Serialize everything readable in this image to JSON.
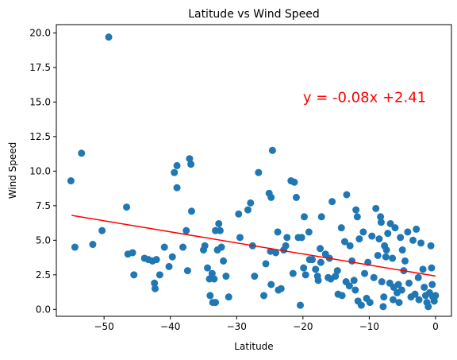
{
  "chart_data": {
    "type": "scatter",
    "title": "Latitude vs Wind Speed",
    "xlabel": "Latitude",
    "ylabel": "Wind Speed",
    "xlim": [
      -57.2,
      2.4
    ],
    "ylim": [
      -0.5,
      20.6
    ],
    "xticks": [
      -50,
      -40,
      -30,
      -20,
      -10,
      0
    ],
    "yticks": [
      0.0,
      2.5,
      5.0,
      7.5,
      10.0,
      12.5,
      15.0,
      17.5,
      20.0
    ],
    "xtick_labels": [
      "−50",
      "−40",
      "−30",
      "−20",
      "−10",
      "0"
    ],
    "ytick_labels": [
      "0.0",
      "2.5",
      "5.0",
      "7.5",
      "10.0",
      "12.5",
      "15.0",
      "17.5",
      "20.0"
    ],
    "grid": false,
    "point_color": "#1f77b4",
    "line_color": "#ff0000",
    "regression": {
      "slope": -0.08,
      "intercept": 2.41,
      "x_range": [
        -54.9,
        0
      ]
    },
    "annotation": {
      "text": "y = -0.08x +2.41",
      "x": -20,
      "y": 15.0,
      "color": "#ff0000"
    },
    "points": [
      [
        -49.3,
        19.7
      ],
      [
        -53.4,
        11.3
      ],
      [
        -55.0,
        9.3
      ],
      [
        -54.4,
        4.5
      ],
      [
        -51.7,
        4.7
      ],
      [
        -50.3,
        5.7
      ],
      [
        -46.6,
        7.4
      ],
      [
        -46.4,
        4.0
      ],
      [
        -45.7,
        4.1
      ],
      [
        -45.5,
        2.5
      ],
      [
        -43.9,
        3.7
      ],
      [
        -43.3,
        3.6
      ],
      [
        -42.7,
        3.5
      ],
      [
        -42.4,
        1.9
      ],
      [
        -42.3,
        1.5
      ],
      [
        -42.1,
        3.6
      ],
      [
        -41.6,
        2.5
      ],
      [
        -40.9,
        4.5
      ],
      [
        -40.2,
        3.1
      ],
      [
        -39.4,
        9.9
      ],
      [
        -39.0,
        10.4
      ],
      [
        -39.0,
        8.8
      ],
      [
        -39.7,
        3.8
      ],
      [
        -38.1,
        4.5
      ],
      [
        -37.6,
        5.7
      ],
      [
        -37.4,
        2.8
      ],
      [
        -37.1,
        10.9
      ],
      [
        -36.9,
        10.5
      ],
      [
        -36.8,
        7.1
      ],
      [
        -35.0,
        4.3
      ],
      [
        -34.8,
        4.6
      ],
      [
        -34.4,
        3.0
      ],
      [
        -34.1,
        2.2
      ],
      [
        -34.0,
        1.0
      ],
      [
        -33.7,
        2.6
      ],
      [
        -33.4,
        2.2
      ],
      [
        -33.6,
        0.5
      ],
      [
        -33.2,
        0.5
      ],
      [
        -33.2,
        5.7
      ],
      [
        -32.9,
        4.3
      ],
      [
        -32.7,
        6.2
      ],
      [
        -32.5,
        5.7
      ],
      [
        -32.3,
        4.5
      ],
      [
        -32.0,
        3.5
      ],
      [
        -31.6,
        2.4
      ],
      [
        -31.2,
        0.9
      ],
      [
        -29.7,
        6.9
      ],
      [
        -29.5,
        5.2
      ],
      [
        -28.3,
        7.2
      ],
      [
        -27.9,
        7.7
      ],
      [
        -27.6,
        4.6
      ],
      [
        -27.3,
        2.4
      ],
      [
        -26.7,
        9.9
      ],
      [
        -25.9,
        1.0
      ],
      [
        -25.6,
        3.3
      ],
      [
        -25.1,
        8.4
      ],
      [
        -24.9,
        4.2
      ],
      [
        -24.8,
        8.1
      ],
      [
        -24.6,
        11.5
      ],
      [
        -24.8,
        1.8
      ],
      [
        -24.1,
        4.1
      ],
      [
        -23.8,
        5.6
      ],
      [
        -23.7,
        1.4
      ],
      [
        -23.3,
        1.5
      ],
      [
        -22.9,
        4.3
      ],
      [
        -22.6,
        4.6
      ],
      [
        -22.4,
        5.2
      ],
      [
        -21.8,
        9.3
      ],
      [
        -21.3,
        9.2
      ],
      [
        -21.5,
        2.6
      ],
      [
        -21.0,
        8.1
      ],
      [
        -20.7,
        5.2
      ],
      [
        -20.4,
        0.3
      ],
      [
        -20.2,
        5.2
      ],
      [
        -19.8,
        6.7
      ],
      [
        -19.9,
        3.0
      ],
      [
        -19.6,
        2.5
      ],
      [
        -19.1,
        5.6
      ],
      [
        -19.0,
        3.6
      ],
      [
        -18.6,
        3.6
      ],
      [
        -18.1,
        2.9
      ],
      [
        -17.8,
        2.4
      ],
      [
        -17.7,
        2.1
      ],
      [
        -17.4,
        4.4
      ],
      [
        -17.3,
        3.4
      ],
      [
        -17.2,
        6.7
      ],
      [
        -16.6,
        4.0
      ],
      [
        -16.2,
        2.3
      ],
      [
        -16.0,
        3.7
      ],
      [
        -15.8,
        2.2
      ],
      [
        -15.6,
        7.8
      ],
      [
        -15.1,
        2.4
      ],
      [
        -14.8,
        2.8
      ],
      [
        -14.7,
        1.1
      ],
      [
        -14.2,
        5.9
      ],
      [
        -14.1,
        1.0
      ],
      [
        -13.7,
        4.9
      ],
      [
        -13.5,
        2.0
      ],
      [
        -13.4,
        8.3
      ],
      [
        -13.0,
        1.7
      ],
      [
        -12.9,
        4.6
      ],
      [
        -12.6,
        3.5
      ],
      [
        -12.3,
        2.1
      ],
      [
        -12.1,
        1.4
      ],
      [
        -12.0,
        7.2
      ],
      [
        -11.8,
        6.7
      ],
      [
        -11.7,
        0.6
      ],
      [
        -11.5,
        5.1
      ],
      [
        -11.2,
        0.3
      ],
      [
        -10.9,
        5.6
      ],
      [
        -10.7,
        2.6
      ],
      [
        -10.4,
        0.8
      ],
      [
        -10.2,
        3.4
      ],
      [
        -9.9,
        0.5
      ],
      [
        -9.6,
        5.3
      ],
      [
        -9.3,
        2.3
      ],
      [
        -9.0,
        7.3
      ],
      [
        -8.7,
        3.9
      ],
      [
        -8.5,
        5.1
      ],
      [
        -8.3,
        6.7
      ],
      [
        -8.2,
        6.3
      ],
      [
        -8.1,
        2.0
      ],
      [
        -7.9,
        0.2
      ],
      [
        -7.8,
        0.9
      ],
      [
        -7.7,
        4.6
      ],
      [
        -7.5,
        3.8
      ],
      [
        -7.4,
        4.3
      ],
      [
        -7.2,
        5.5
      ],
      [
        -6.9,
        1.9
      ],
      [
        -6.8,
        6.2
      ],
      [
        -6.5,
        3.7
      ],
      [
        -6.4,
        0.7
      ],
      [
        -6.3,
        1.6
      ],
      [
        -6.1,
        5.9
      ],
      [
        -5.8,
        1.2
      ],
      [
        -5.6,
        1.8
      ],
      [
        -5.5,
        0.5
      ],
      [
        -5.3,
        5.2
      ],
      [
        -5.1,
        1.4
      ],
      [
        -5.0,
        4.3
      ],
      [
        -4.8,
        2.8
      ],
      [
        -4.6,
        3.5
      ],
      [
        -4.2,
        5.6
      ],
      [
        -4.0,
        1.9
      ],
      [
        -3.7,
        0.9
      ],
      [
        -3.4,
        5.0
      ],
      [
        -3.1,
        1.1
      ],
      [
        -2.9,
        5.8
      ],
      [
        -2.6,
        2.3
      ],
      [
        -2.5,
        0.7
      ],
      [
        -2.2,
        4.8
      ],
      [
        -1.9,
        2.9
      ],
      [
        -1.7,
        1.6
      ],
      [
        -1.5,
        1.0
      ],
      [
        -1.3,
        0.5
      ],
      [
        -1.1,
        0.2
      ],
      [
        -0.9,
        1.2
      ],
      [
        -0.7,
        4.6
      ],
      [
        -0.6,
        3.0
      ],
      [
        -0.5,
        1.8
      ],
      [
        -0.4,
        0.9
      ],
      [
        -0.2,
        0.6
      ],
      [
        0.0,
        1.0
      ]
    ]
  }
}
